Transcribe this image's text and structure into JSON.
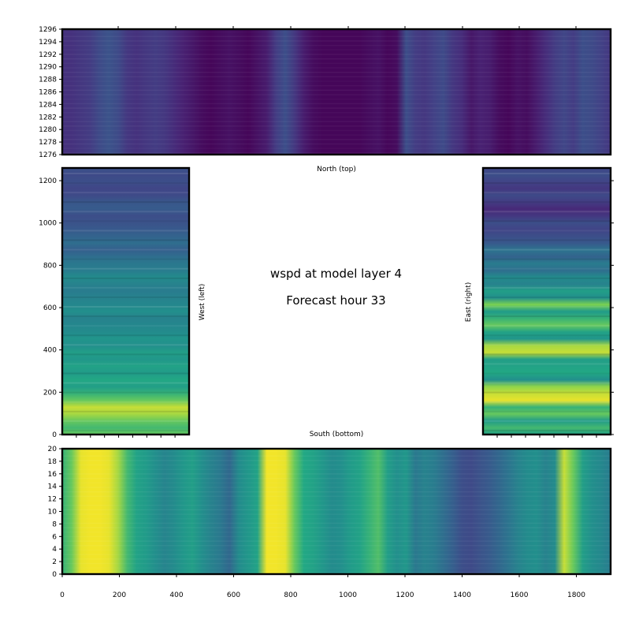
{
  "figure": {
    "title_line_1": "wspd at model layer 4",
    "title_line_2": "Forecast hour 33"
  },
  "chart_data": [
    {
      "type": "heatmap",
      "panel": "north",
      "xlabel": "North (top)",
      "ylabel": "",
      "xlim": [
        0,
        1920
      ],
      "ylim": [
        1276,
        1296
      ],
      "x_ticks": [],
      "y_ticks": [
        1276,
        1278,
        1280,
        1282,
        1284,
        1286,
        1288,
        1290,
        1292,
        1294,
        1296
      ],
      "colormap": "viridis",
      "color_profile": [
        0.18,
        0.18,
        0.2,
        0.22,
        0.28,
        0.32,
        0.28,
        0.2,
        0.18,
        0.2,
        0.22,
        0.2,
        0.16,
        0.12,
        0.08,
        0.04,
        0.02,
        0.04,
        0.06,
        0.04,
        0.02,
        0.06,
        0.1,
        0.22,
        0.3,
        0.2,
        0.1,
        0.04,
        0.02,
        0.02,
        0.02,
        0.02,
        0.02,
        0.04,
        0.06,
        0.02,
        0.04,
        0.3,
        0.22,
        0.2,
        0.24,
        0.28,
        0.2,
        0.16,
        0.08,
        0.12,
        0.1,
        0.04,
        0.02,
        0.06,
        0.04,
        0.1,
        0.16,
        0.22,
        0.26,
        0.22,
        0.3,
        0.28,
        0.24,
        0.2
      ]
    },
    {
      "type": "heatmap",
      "panel": "west",
      "xlabel": "",
      "ylabel": "West (left)",
      "xlim": [
        0,
        450
      ],
      "ylim": [
        0,
        1260
      ],
      "x_ticks": [],
      "y_ticks": [
        0,
        200,
        400,
        600,
        800,
        1000,
        1200
      ],
      "colormap": "viridis",
      "color_profile": [
        0.85,
        0.8,
        0.85,
        0.92,
        0.95,
        0.85,
        0.78,
        0.7,
        0.75,
        0.68,
        0.72,
        0.66,
        0.7,
        0.62,
        0.65,
        0.6,
        0.58,
        0.55,
        0.62,
        0.58,
        0.55,
        0.52,
        0.55,
        0.6,
        0.52,
        0.5,
        0.45,
        0.38,
        0.45,
        0.4,
        0.35,
        0.32,
        0.3,
        0.36,
        0.34,
        0.28,
        0.26,
        0.3,
        0.28,
        0.32
      ]
    },
    {
      "type": "heatmap",
      "panel": "east",
      "xlabel": "",
      "ylabel": "East (right)",
      "xlim": [
        1470,
        1920
      ],
      "ylim": [
        0,
        1260
      ],
      "x_ticks": [],
      "y_ticks": [],
      "colormap": "viridis",
      "color_profile": [
        0.72,
        0.8,
        0.68,
        0.85,
        0.78,
        0.98,
        0.95,
        0.9,
        0.62,
        0.75,
        0.72,
        0.7,
        0.95,
        0.92,
        0.65,
        0.72,
        0.85,
        0.78,
        0.68,
        0.88,
        0.62,
        0.7,
        0.55,
        0.6,
        0.45,
        0.52,
        0.4,
        0.48,
        0.35,
        0.3,
        0.25,
        0.3,
        0.2,
        0.15,
        0.22,
        0.28,
        0.2,
        0.25,
        0.3,
        0.26
      ]
    },
    {
      "type": "heatmap",
      "panel": "south",
      "xlabel": "South (bottom)",
      "ylabel": "",
      "xlim": [
        0,
        1920
      ],
      "ylim": [
        0,
        20
      ],
      "x_ticks": [
        0,
        200,
        400,
        600,
        800,
        1000,
        1200,
        1400,
        1600,
        1800
      ],
      "y_ticks": [
        0,
        2,
        4,
        6,
        8,
        10,
        12,
        14,
        16,
        18,
        20
      ],
      "colormap": "viridis",
      "color_profile": [
        0.78,
        0.85,
        0.98,
        0.99,
        0.99,
        0.98,
        0.92,
        0.8,
        0.72,
        0.68,
        0.62,
        0.56,
        0.6,
        0.66,
        0.7,
        0.62,
        0.55,
        0.5,
        0.42,
        0.6,
        0.66,
        0.72,
        0.99,
        0.99,
        0.98,
        0.85,
        0.75,
        0.72,
        0.66,
        0.6,
        0.62,
        0.68,
        0.72,
        0.78,
        0.82,
        0.7,
        0.62,
        0.66,
        0.5,
        0.55,
        0.52,
        0.45,
        0.38,
        0.3,
        0.28,
        0.32,
        0.36,
        0.42,
        0.48,
        0.55,
        0.6,
        0.62,
        0.55,
        0.6,
        0.95,
        0.85,
        0.7,
        0.62,
        0.58,
        0.52
      ]
    }
  ]
}
